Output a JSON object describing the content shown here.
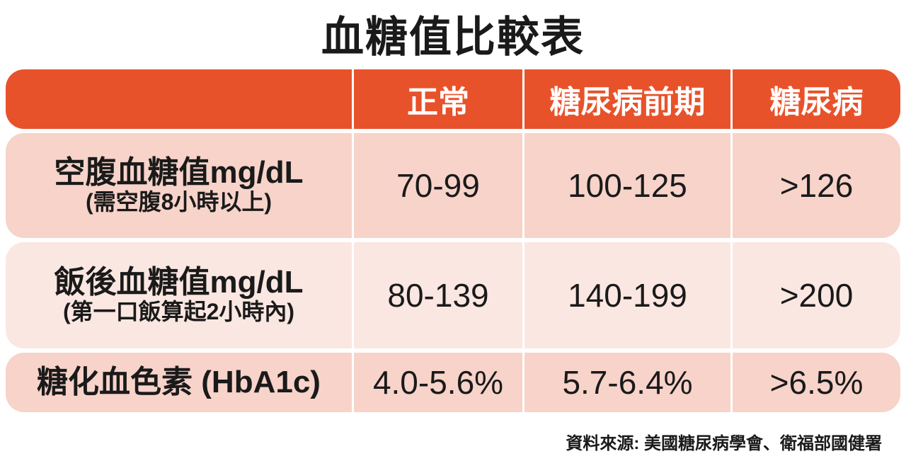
{
  "title": "血糖值比較表",
  "table": {
    "header": [
      "正常",
      "糖尿病前期",
      "糖尿病"
    ],
    "rows": [
      {
        "label": "空腹血糖值mg/dL",
        "note": "(需空腹8小時以上)",
        "cells": [
          "70-99",
          "100-125",
          ">126"
        ]
      },
      {
        "label": "飯後血糖值mg/dL",
        "note": "(第一口飯算起2小時內)",
        "cells": [
          "80-139",
          "140-199",
          ">200"
        ]
      },
      {
        "label": "糖化血色素 (HbA1c)",
        "cells": [
          "4.0-5.6%",
          "5.7-6.4%",
          ">6.5%"
        ]
      }
    ]
  },
  "source": "資料來源: 美國糖尿病學會、衛福部國健署"
}
